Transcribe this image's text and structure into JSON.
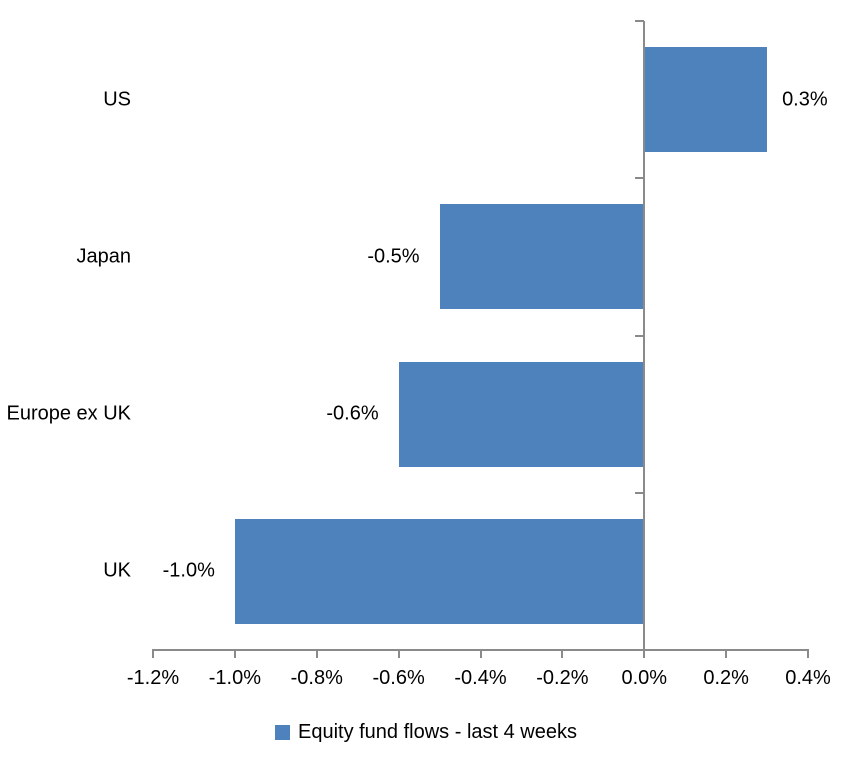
{
  "chart_data": {
    "type": "bar",
    "orientation": "horizontal",
    "title": "",
    "categories": [
      "US",
      "Japan",
      "Europe ex UK",
      "UK"
    ],
    "series": [
      {
        "name": "Equity fund flows - last 4 weeks",
        "values": [
          0.3,
          -0.5,
          -0.6,
          -1.0
        ],
        "data_labels": [
          "0.3%",
          "-0.5%",
          "-0.6%",
          "-1.0%"
        ]
      }
    ],
    "xlabel": "",
    "ylabel": "",
    "xlim": [
      -1.2,
      0.4
    ],
    "x_tick_values": [
      -1.2,
      -1.0,
      -0.8,
      -0.6,
      -0.4,
      -0.2,
      0.0,
      0.2,
      0.4
    ],
    "x_tick_labels": [
      "-1.2%",
      "-1.0%",
      "-0.8%",
      "-0.6%",
      "-0.4%",
      "-0.2%",
      "0.0%",
      "0.2%",
      "0.4%"
    ],
    "grid": false,
    "legend_position": "bottom",
    "bar_color": "#4e82bc",
    "axis_color": "#8a8a8a",
    "text_color": "#000000"
  },
  "legend": {
    "label": "Equity fund flows - last 4 weeks"
  }
}
